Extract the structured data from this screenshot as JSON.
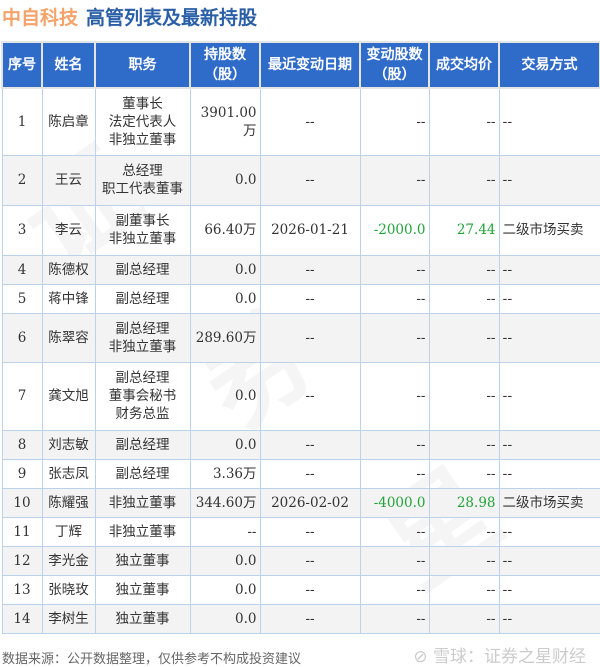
{
  "header": {
    "company": "中自科技",
    "subtitle": "高管列表及最新持股"
  },
  "table": {
    "columns": [
      "序号",
      "姓名",
      "职务",
      "持股数\n（股）",
      "最近变动日期",
      "变动股数\n（股）",
      "成交均价",
      "交易方式"
    ],
    "rows": [
      {
        "no": "1",
        "name": "陈启章",
        "roles": [
          "董事长",
          "法定代表人",
          "非独立董事"
        ],
        "shares": "3901.00万",
        "date": "--",
        "change": "--",
        "price": "--",
        "method": "--"
      },
      {
        "no": "2",
        "name": "王云",
        "roles": [
          "总经理",
          "职工代表董事"
        ],
        "shares": "0.0",
        "date": "--",
        "change": "--",
        "price": "--",
        "method": "--"
      },
      {
        "no": "3",
        "name": "李云",
        "roles": [
          "副董事长",
          "非独立董事"
        ],
        "shares": "66.40万",
        "date": "2026-01-21",
        "change": "-2000.0",
        "price": "27.44",
        "method": "二级市场买卖"
      },
      {
        "no": "4",
        "name": "陈德权",
        "roles": [
          "副总经理"
        ],
        "shares": "0.0",
        "date": "--",
        "change": "--",
        "price": "--",
        "method": "--"
      },
      {
        "no": "5",
        "name": "蒋中锋",
        "roles": [
          "副总经理"
        ],
        "shares": "0.0",
        "date": "--",
        "change": "--",
        "price": "--",
        "method": "--"
      },
      {
        "no": "6",
        "name": "陈翠容",
        "roles": [
          "副总经理",
          "非独立董事"
        ],
        "shares": "289.60万",
        "date": "--",
        "change": "--",
        "price": "--",
        "method": "--"
      },
      {
        "no": "7",
        "name": "龚文旭",
        "roles": [
          "副总经理",
          "董事会秘书",
          "财务总监"
        ],
        "shares": "0.0",
        "date": "--",
        "change": "--",
        "price": "--",
        "method": "--"
      },
      {
        "no": "8",
        "name": "刘志敏",
        "roles": [
          "副总经理"
        ],
        "shares": "0.0",
        "date": "--",
        "change": "--",
        "price": "--",
        "method": "--"
      },
      {
        "no": "9",
        "name": "张志凤",
        "roles": [
          "副总经理"
        ],
        "shares": "3.36万",
        "date": "--",
        "change": "--",
        "price": "--",
        "method": "--"
      },
      {
        "no": "10",
        "name": "陈耀强",
        "roles": [
          "非独立董事"
        ],
        "shares": "344.60万",
        "date": "2026-02-02",
        "change": "-4000.0",
        "price": "28.98",
        "method": "二级市场买卖"
      },
      {
        "no": "11",
        "name": "丁辉",
        "roles": [
          "非独立董事"
        ],
        "shares": "--",
        "date": "--",
        "change": "--",
        "price": "--",
        "method": "--"
      },
      {
        "no": "12",
        "name": "李光金",
        "roles": [
          "独立董事"
        ],
        "shares": "0.0",
        "date": "--",
        "change": "--",
        "price": "--",
        "method": "--"
      },
      {
        "no": "13",
        "name": "张晓玫",
        "roles": [
          "独立董事"
        ],
        "shares": "0.0",
        "date": "--",
        "change": "--",
        "price": "--",
        "method": "--"
      },
      {
        "no": "14",
        "name": "李树生",
        "roles": [
          "独立董事"
        ],
        "shares": "0.0",
        "date": "--",
        "change": "--",
        "price": "--",
        "method": "--"
      }
    ]
  },
  "footer": {
    "source": "数据来源：公开数据整理，仅供参考不构成投资建议",
    "watermark": "雪球：证券之星财经"
  },
  "colors": {
    "header_bg": "#2f6bc9",
    "company": "#f5a36a",
    "subtitle": "#2a5fa8",
    "negative_change": "#22a33a"
  }
}
